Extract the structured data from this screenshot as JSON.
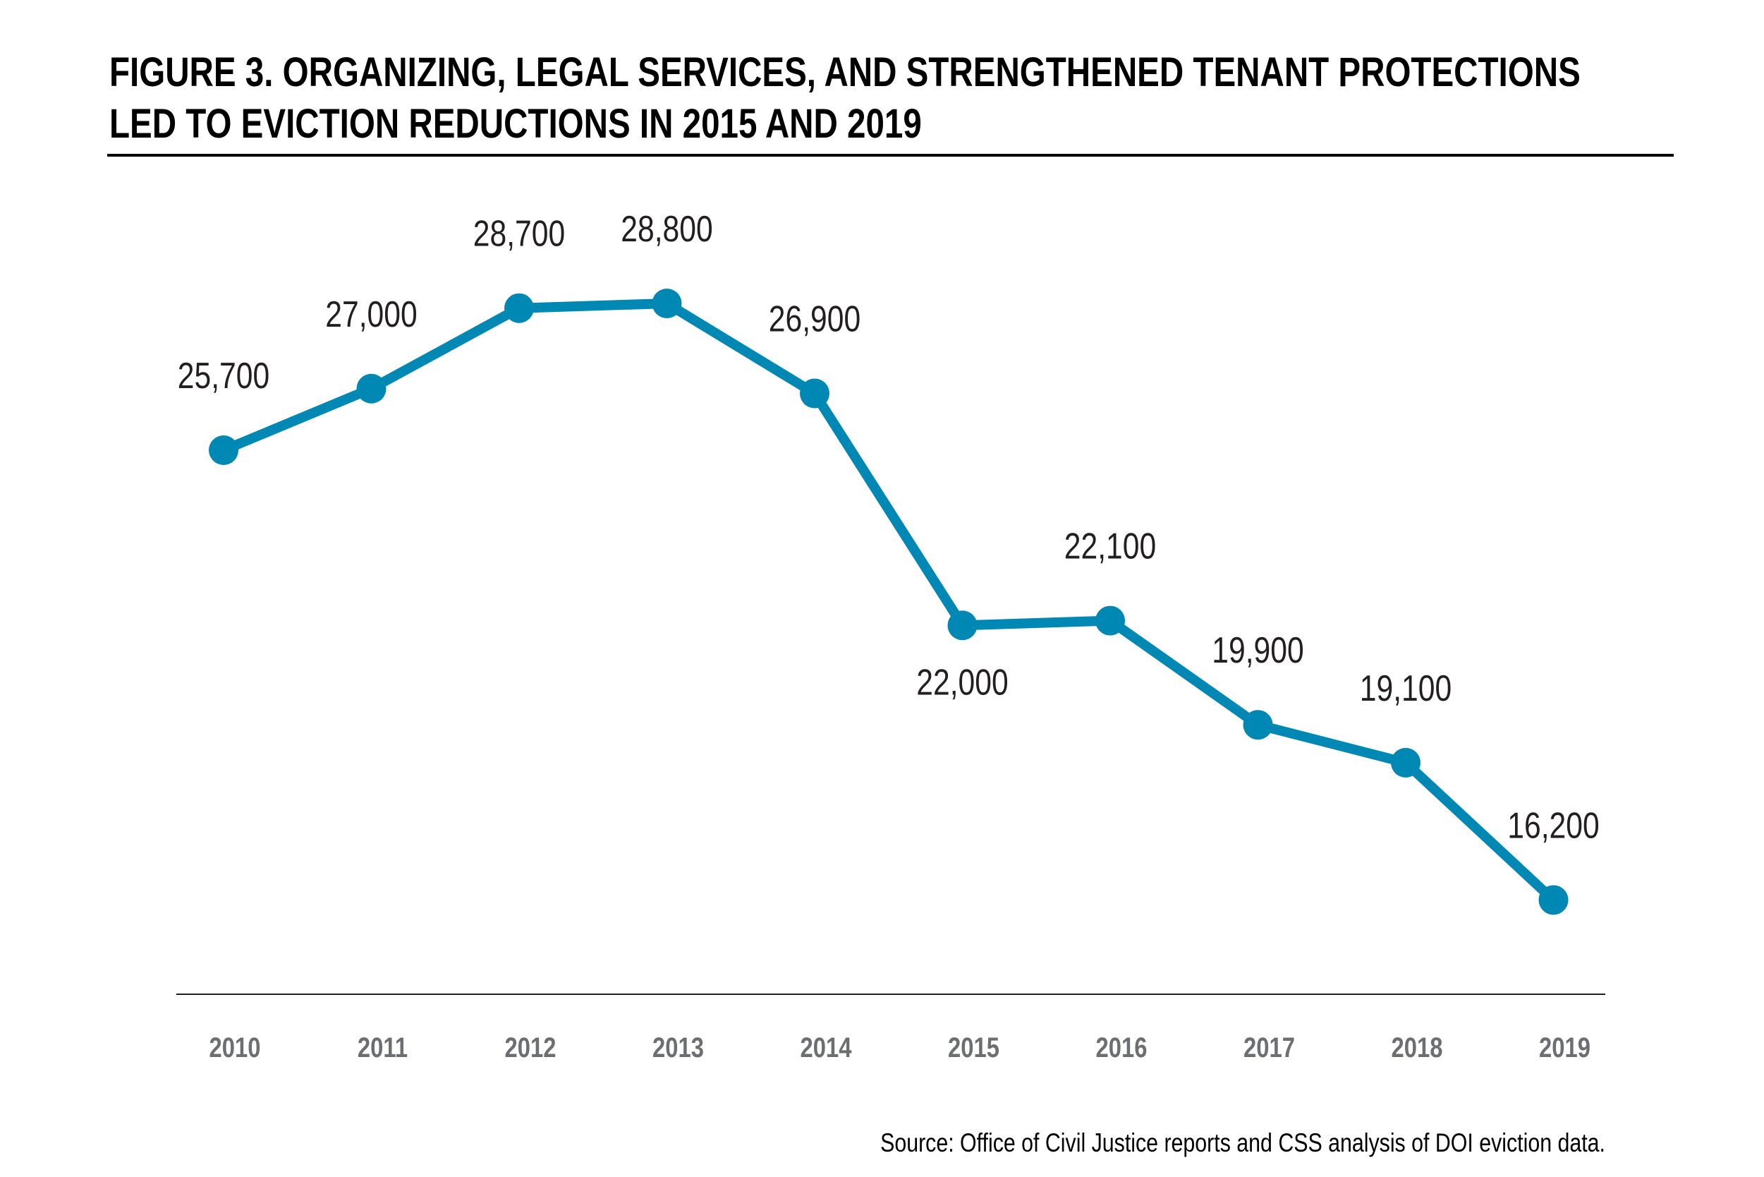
{
  "chart_data": {
    "type": "line",
    "title": "FIGURE 3. ORGANIZING, LEGAL SERVICES, AND STRENGTHENED TENANT PROTECTIONS LED TO EVICTION REDUCTIONS IN 2015 AND 2019",
    "title_lines": [
      "FIGURE 3. ORGANIZING, LEGAL SERVICES, AND STRENGTHENED TENANT PROTECTIONS",
      "LED TO EVICTION REDUCTIONS IN 2015 AND 2019"
    ],
    "categories": [
      "2010",
      "2011",
      "2012",
      "2013",
      "2014",
      "2015",
      "2016",
      "2017",
      "2018",
      "2019"
    ],
    "values": [
      25700,
      27000,
      28700,
      28800,
      26900,
      22000,
      22100,
      19900,
      19100,
      16200
    ],
    "data_labels": [
      "25,700",
      "27,000",
      "28,700",
      "28,800",
      "26,900",
      "22,000",
      "22,100",
      "19,900",
      "19,100",
      "16,200"
    ],
    "xlabel": "",
    "ylabel": "",
    "grid": false,
    "legend": "none",
    "source": "Source: Office of Civil Justice reports and CSS analysis of DOI eviction data.",
    "colors": {
      "line": "#0088b4",
      "text": "#231f20",
      "tick": "#6d6e71",
      "axis": "#231f20"
    }
  }
}
